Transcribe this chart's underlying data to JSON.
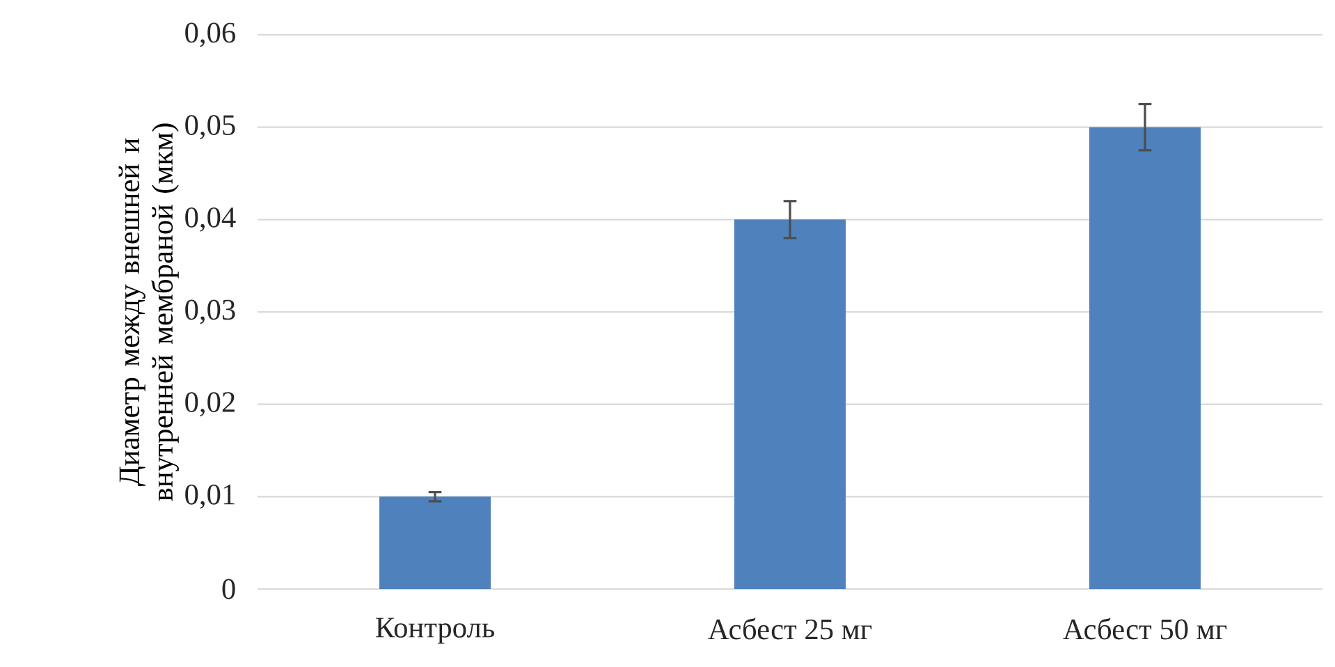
{
  "chart_data": {
    "type": "bar",
    "ylabel": "Диаметр между внешней и внутренней мембраной (мкм)",
    "categories": [
      "Контроль",
      "Асбест 25 мг",
      "Асбест 50 мг"
    ],
    "values": [
      0.01,
      0.04,
      0.05
    ],
    "errors": [
      0.0005,
      0.002,
      0.0025
    ],
    "color": "#4f81bd",
    "ylim": [
      0,
      0.06
    ],
    "yticks": [
      0,
      {
        "value": 0.01,
        "label": "0,01"
      },
      {
        "value": 0.02,
        "label": "0,02"
      },
      {
        "value": 0.03,
        "label": "0,03"
      },
      {
        "value": 0.04,
        "label": "0,04"
      },
      {
        "value": 0.05,
        "label": "0,05"
      },
      {
        "value": 0.06,
        "label": "0,06"
      }
    ],
    "grid": "y"
  }
}
